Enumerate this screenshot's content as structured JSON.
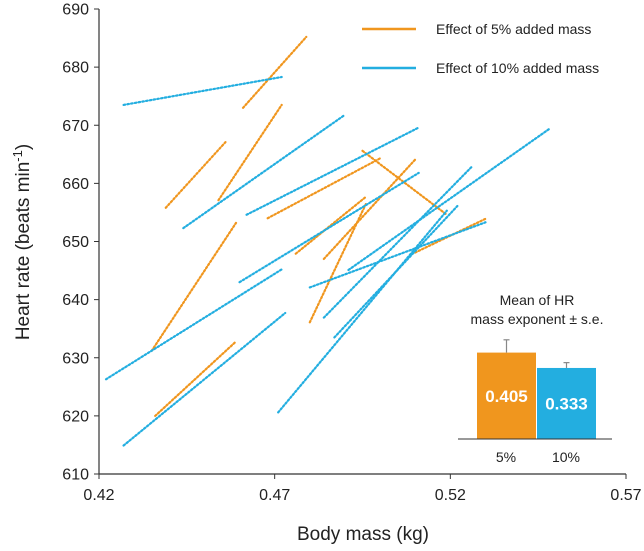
{
  "chart_data": {
    "type": "line",
    "xlabel": "Body mass (kg)",
    "ylabel": "Heart rate (beats min",
    "ylabel_sup": "-1",
    "ylabel_end": ")",
    "xlim": [
      0.42,
      0.57
    ],
    "ylim": [
      610,
      690
    ],
    "xticks": [
      0.42,
      0.47,
      0.52,
      0.57
    ],
    "xtick_labels": [
      "0.42",
      "0.47",
      "0.52",
      "0.57"
    ],
    "yticks": [
      610,
      620,
      630,
      640,
      650,
      660,
      670,
      680,
      690
    ],
    "ytick_labels": [
      "610",
      "620",
      "630",
      "640",
      "650",
      "660",
      "670",
      "680",
      "690"
    ],
    "colors": {
      "five": "#f0961e",
      "ten": "#23aee0"
    },
    "legend": [
      {
        "key": "five",
        "label": "Effect of 5% added mass"
      },
      {
        "key": "ten",
        "label": "Effect of 10% added mass"
      }
    ],
    "series": [
      {
        "name": "Effect of 5% added mass",
        "color_key": "five",
        "segments": [
          [
            [
              0.436,
              620.0
            ],
            [
              0.459,
              632.8
            ]
          ],
          [
            [
              0.435,
              631.2
            ],
            [
              0.459,
              653.2
            ]
          ],
          [
            [
              0.439,
              655.8
            ],
            [
              0.456,
              667.1
            ]
          ],
          [
            [
              0.454,
              657.1
            ],
            [
              0.472,
              673.5
            ]
          ],
          [
            [
              0.461,
              673.0
            ],
            [
              0.479,
              685.2
            ]
          ],
          [
            [
              0.468,
              654.0
            ],
            [
              0.5,
              664.3
            ]
          ],
          [
            [
              0.476,
              647.9
            ],
            [
              0.496,
              657.7
            ]
          ],
          [
            [
              0.48,
              636.1
            ],
            [
              0.496,
              656.5
            ]
          ],
          [
            [
              0.484,
              647.0
            ],
            [
              0.51,
              664.1
            ]
          ],
          [
            [
              0.495,
              665.6
            ],
            [
              0.519,
              654.6
            ]
          ],
          [
            [
              0.51,
              648.1
            ],
            [
              0.53,
              653.9
            ]
          ]
        ]
      },
      {
        "name": "Effect of 10% added mass",
        "color_key": "ten",
        "segments": [
          [
            [
              0.427,
              673.5
            ],
            [
              0.472,
              678.3
            ]
          ],
          [
            [
              0.422,
              626.3
            ],
            [
              0.472,
              645.2
            ]
          ],
          [
            [
              0.427,
              614.9
            ],
            [
              0.473,
              637.7
            ]
          ],
          [
            [
              0.444,
              652.3
            ],
            [
              0.49,
              671.8
            ]
          ],
          [
            [
              0.46,
              643.0
            ],
            [
              0.511,
              661.8
            ]
          ],
          [
            [
              0.462,
              654.6
            ],
            [
              0.511,
              669.6
            ]
          ],
          [
            [
              0.48,
              642.1
            ],
            [
              0.53,
              653.3
            ]
          ],
          [
            [
              0.484,
              636.9
            ],
            [
              0.526,
              662.8
            ]
          ],
          [
            [
              0.491,
              645.1
            ],
            [
              0.548,
              669.3
            ]
          ],
          [
            [
              0.471,
              620.6
            ],
            [
              0.519,
              655.3
            ]
          ],
          [
            [
              0.487,
              633.5
            ],
            [
              0.522,
              656.1
            ]
          ]
        ]
      }
    ],
    "inset": {
      "type": "bar",
      "title_line1": "Mean of HR",
      "title_line2": "mass exponent ± s.e.",
      "categories": [
        "5%",
        "10%"
      ],
      "values": [
        0.405,
        0.333
      ],
      "value_labels": [
        "0.405",
        "0.333"
      ],
      "errors": [
        0.06,
        0.025
      ],
      "ylim": [
        0,
        0.6
      ],
      "color_keys": [
        "five",
        "ten"
      ]
    }
  }
}
